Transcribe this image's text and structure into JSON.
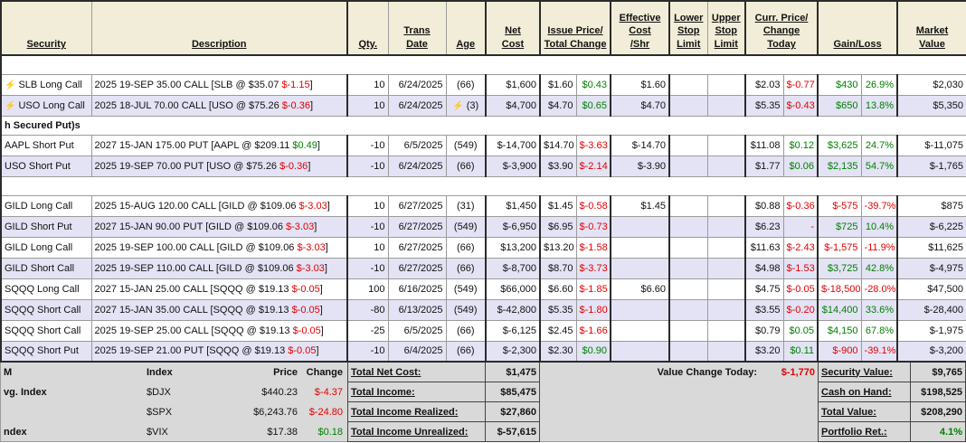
{
  "colors": {
    "positive": "#008000",
    "negative": "#e50000",
    "header_bg": "#f2edd8",
    "alt_row_bg": "#e3e3f5",
    "footer_bg": "#d9d9d9",
    "bolt": "#f0a202"
  },
  "header": {
    "security": "Security",
    "description": "Description",
    "qty": "Qty.",
    "trans_date": "Trans\nDate",
    "age": "Age",
    "net_cost": "Net\nCost",
    "issue_price_total_change": "Issue Price/\nTotal Change",
    "effective_cost": "Effective\nCost\n/Shr",
    "lower_stop": "Lower\nStop\nLimit",
    "upper_stop": "Upper\nStop\nLimit",
    "curr_price_change_today": "Curr. Price/\nChange Today",
    "gain_loss": "Gain/Loss",
    "market_value": "Market\nValue"
  },
  "rows": [
    {
      "type": "blank"
    },
    {
      "type": "position",
      "alt": false,
      "bolt": true,
      "security": "SLB Long Call",
      "desc": [
        {
          "t": "2025 19-SEP 35.00 CALL [SLB @ $35.07 "
        },
        {
          "t": "$-1.15",
          "colored": true
        },
        {
          "t": "]"
        }
      ],
      "qty": "10",
      "date": "6/24/2025",
      "age": "(66)",
      "age_bolt": false,
      "net_cost": "$1,600",
      "issue_price": "$1.60",
      "total_change": "$0.43",
      "eff_cost": "$1.60",
      "lower": "",
      "upper": "",
      "curr_price": "$2.03",
      "change_today": "$-0.77",
      "gain": "$430",
      "gain_pct": "26.9%",
      "market_value": "$2,030"
    },
    {
      "type": "position",
      "alt": true,
      "bolt": true,
      "security": "USO Long Call",
      "desc": [
        {
          "t": "2025 18-JUL 70.00 CALL [USO @ $75.26 "
        },
        {
          "t": "$-0.36",
          "colored": true
        },
        {
          "t": "]"
        }
      ],
      "qty": "10",
      "date": "6/24/2025",
      "age": "(3)",
      "age_bolt": true,
      "net_cost": "$4,700",
      "issue_price": "$4.70",
      "total_change": "$0.65",
      "eff_cost": "$4.70",
      "lower": "",
      "upper": "",
      "curr_price": "$5.35",
      "change_today": "$-0.43",
      "gain": "$650",
      "gain_pct": "13.8%",
      "market_value": "$5,350"
    },
    {
      "type": "section",
      "label": "h Secured Put)s"
    },
    {
      "type": "position",
      "alt": false,
      "bolt": false,
      "security": "AAPL Short Put",
      "desc": [
        {
          "t": "2027 15-JAN 175.00 PUT [AAPL @ $209.11 "
        },
        {
          "t": "$0.49",
          "colored": true
        },
        {
          "t": "]"
        }
      ],
      "qty": "-10",
      "date": "6/5/2025",
      "age": "(549)",
      "age_bolt": false,
      "net_cost": "$-14,700",
      "issue_price": "$14.70",
      "total_change": "$-3.63",
      "eff_cost": "$-14.70",
      "lower": "",
      "upper": "",
      "curr_price": "$11.08",
      "change_today": "$0.12",
      "gain": "$3,625",
      "gain_pct": "24.7%",
      "market_value": "$-11,075"
    },
    {
      "type": "position",
      "alt": true,
      "bolt": false,
      "security": "USO Short Put",
      "desc": [
        {
          "t": "2025 19-SEP 70.00 PUT [USO @ $75.26 "
        },
        {
          "t": "$-0.36",
          "colored": true
        },
        {
          "t": "]"
        }
      ],
      "qty": "-10",
      "date": "6/24/2025",
      "age": "(66)",
      "age_bolt": false,
      "net_cost": "$-3,900",
      "issue_price": "$3.90",
      "total_change": "$-2.14",
      "eff_cost": "$-3.90",
      "lower": "",
      "upper": "",
      "curr_price": "$1.77",
      "change_today": "$0.06",
      "gain": "$2,135",
      "gain_pct": "54.7%",
      "market_value": "$-1,765"
    },
    {
      "type": "blank"
    },
    {
      "type": "position",
      "alt": false,
      "bolt": false,
      "security": "GILD Long Call",
      "desc": [
        {
          "t": "2025 15-AUG 120.00 CALL [GILD @ $109.06 "
        },
        {
          "t": "$-3.03",
          "colored": true
        },
        {
          "t": "]"
        }
      ],
      "qty": "10",
      "date": "6/27/2025",
      "age": "(31)",
      "age_bolt": false,
      "net_cost": "$1,450",
      "issue_price": "$1.45",
      "total_change": "$-0.58",
      "eff_cost": "$1.45",
      "lower": "",
      "upper": "",
      "curr_price": "$0.88",
      "change_today": "$-0.36",
      "gain": "$-575",
      "gain_pct": "-39.7%",
      "market_value": "$875"
    },
    {
      "type": "position",
      "alt": true,
      "bolt": false,
      "security": "GILD Short Put",
      "desc": [
        {
          "t": "2027 15-JAN 90.00 PUT [GILD @ $109.06 "
        },
        {
          "t": "$-3.03",
          "colored": true
        },
        {
          "t": "]"
        }
      ],
      "qty": "-10",
      "date": "6/27/2025",
      "age": "(549)",
      "age_bolt": false,
      "net_cost": "$-6,950",
      "issue_price": "$6.95",
      "total_change": "$-0.73",
      "eff_cost": "",
      "lower": "",
      "upper": "",
      "curr_price": "$6.23",
      "change_today": "-",
      "gain": "$725",
      "gain_pct": "10.4%",
      "market_value": "$-6,225"
    },
    {
      "type": "position",
      "alt": false,
      "bolt": false,
      "security": "GILD Long Call",
      "desc": [
        {
          "t": "2025 19-SEP 100.00 CALL [GILD @ $109.06 "
        },
        {
          "t": "$-3.03",
          "colored": true
        },
        {
          "t": "]"
        }
      ],
      "qty": "10",
      "date": "6/27/2025",
      "age": "(66)",
      "age_bolt": false,
      "net_cost": "$13,200",
      "issue_price": "$13.20",
      "total_change": "$-1.58",
      "eff_cost": "",
      "lower": "",
      "upper": "",
      "curr_price": "$11.63",
      "change_today": "$-2.43",
      "gain": "$-1,575",
      "gain_pct": "-11.9%",
      "market_value": "$11,625"
    },
    {
      "type": "position",
      "alt": true,
      "bolt": false,
      "security": "GILD Short Call",
      "desc": [
        {
          "t": "2025 19-SEP 110.00 CALL [GILD @ $109.06 "
        },
        {
          "t": "$-3.03",
          "colored": true
        },
        {
          "t": "]"
        }
      ],
      "qty": "-10",
      "date": "6/27/2025",
      "age": "(66)",
      "age_bolt": false,
      "net_cost": "$-8,700",
      "issue_price": "$8.70",
      "total_change": "$-3.73",
      "eff_cost": "",
      "lower": "",
      "upper": "",
      "curr_price": "$4.98",
      "change_today": "$-1.53",
      "gain": "$3,725",
      "gain_pct": "42.8%",
      "market_value": "$-4,975"
    },
    {
      "type": "position",
      "alt": false,
      "bolt": false,
      "security": "SQQQ Long Call",
      "desc": [
        {
          "t": "2027 15-JAN 25.00 CALL [SQQQ @ $19.13 "
        },
        {
          "t": "$-0.05",
          "colored": true
        },
        {
          "t": "]"
        }
      ],
      "qty": "100",
      "date": "6/16/2025",
      "age": "(549)",
      "age_bolt": false,
      "net_cost": "$66,000",
      "issue_price": "$6.60",
      "total_change": "$-1.85",
      "eff_cost": "$6.60",
      "lower": "",
      "upper": "",
      "curr_price": "$4.75",
      "change_today": "$-0.05",
      "gain": "$-18,500",
      "gain_pct": "-28.0%",
      "market_value": "$47,500"
    },
    {
      "type": "position",
      "alt": true,
      "bolt": false,
      "security": "SQQQ Short Call",
      "desc": [
        {
          "t": "2027 15-JAN 35.00 CALL [SQQQ @ $19.13 "
        },
        {
          "t": "$-0.05",
          "colored": true
        },
        {
          "t": "]"
        }
      ],
      "qty": "-80",
      "date": "6/13/2025",
      "age": "(549)",
      "age_bolt": false,
      "net_cost": "$-42,800",
      "issue_price": "$5.35",
      "total_change": "$-1.80",
      "eff_cost": "",
      "lower": "",
      "upper": "",
      "curr_price": "$3.55",
      "change_today": "$-0.20",
      "gain": "$14,400",
      "gain_pct": "33.6%",
      "market_value": "$-28,400"
    },
    {
      "type": "position",
      "alt": false,
      "bolt": false,
      "security": "SQQQ Short Call",
      "desc": [
        {
          "t": "2025 19-SEP 25.00 CALL [SQQQ @ $19.13 "
        },
        {
          "t": "$-0.05",
          "colored": true
        },
        {
          "t": "]"
        }
      ],
      "qty": "-25",
      "date": "6/5/2025",
      "age": "(66)",
      "age_bolt": false,
      "net_cost": "$-6,125",
      "issue_price": "$2.45",
      "total_change": "$-1.66",
      "eff_cost": "",
      "lower": "",
      "upper": "",
      "curr_price": "$0.79",
      "change_today": "$0.05",
      "gain": "$4,150",
      "gain_pct": "67.8%",
      "market_value": "$-1,975"
    },
    {
      "type": "position",
      "alt": true,
      "bolt": false,
      "security": "SQQQ Short Put",
      "desc": [
        {
          "t": "2025 19-SEP 21.00 PUT [SQQQ @ $19.13 "
        },
        {
          "t": "$-0.05",
          "colored": true
        },
        {
          "t": "]"
        }
      ],
      "qty": "-10",
      "date": "6/4/2025",
      "age": "(66)",
      "age_bolt": false,
      "net_cost": "$-2,300",
      "issue_price": "$2.30",
      "total_change": "$0.90",
      "eff_cost": "",
      "lower": "",
      "upper": "",
      "curr_price": "$3.20",
      "change_today": "$0.11",
      "gain": "$-900",
      "gain_pct": "-39.1%",
      "market_value": "$-3,200"
    }
  ],
  "footer": {
    "indices": {
      "col_label": "M",
      "headers": [
        "Index",
        "Price",
        "Change"
      ],
      "rows": [
        {
          "label": "vg. Index",
          "index": "$DJX",
          "price": "$440.23",
          "change": "$-4.37"
        },
        {
          "label": "",
          "index": "$SPX",
          "price": "$6,243.76",
          "change": "$-24.80"
        },
        {
          "label": "ndex",
          "index": "$VIX",
          "price": "$17.38",
          "change": "$0.18"
        }
      ]
    },
    "totals": [
      {
        "label": "Total Net Cost:",
        "value": "$1,475"
      },
      {
        "label": "Total Income:",
        "value": "$85,475"
      },
      {
        "label": "Total Income Realized:",
        "value": "$27,860"
      },
      {
        "label": "Total Income Unrealized:",
        "value": "$-57,615"
      }
    ],
    "value_change": {
      "label": "Value Change Today:",
      "value": "$-1,770"
    },
    "summary": [
      {
        "label": "Security Value:",
        "value": "$9,765"
      },
      {
        "label": "Cash on Hand:",
        "value": "$198,525"
      },
      {
        "label": "Total Value:",
        "value": "$208,290"
      },
      {
        "label": "Portfolio Ret.:",
        "value": "4.1%",
        "colored": true
      }
    ]
  }
}
